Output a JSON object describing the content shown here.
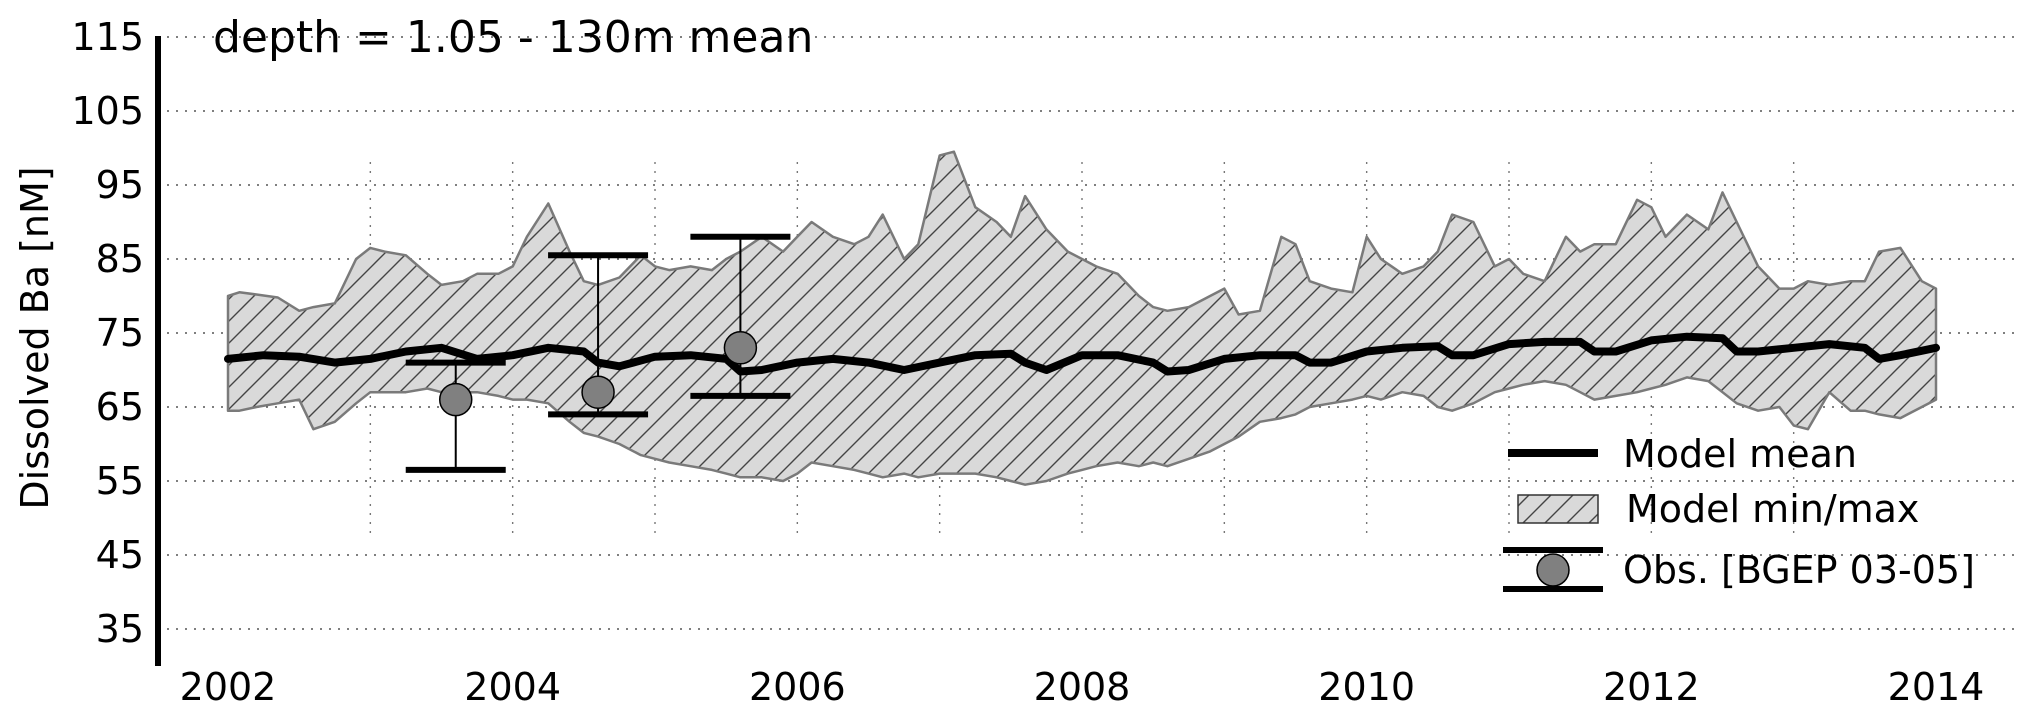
{
  "chart_data": {
    "type": "line",
    "title": "depth = 1.05 - 130m mean",
    "xlabel": "",
    "ylabel": "Dissolved Ba [nM]",
    "xlim": [
      2002,
      2014
    ],
    "ylim": [
      30,
      120
    ],
    "xticks": [
      "2002",
      "2004",
      "2006",
      "2008",
      "2010",
      "2012",
      "2014"
    ],
    "yticks": [
      "35",
      "45",
      "55",
      "65",
      "75",
      "85",
      "95",
      "105",
      "115"
    ],
    "grid": "dotted",
    "legend_placement": "lower-right",
    "series": [
      {
        "name": "Model mean",
        "style": "thick-line",
        "color": "#000000",
        "x": [
          2002.0,
          2002.25,
          2002.5,
          2002.75,
          2003.0,
          2003.25,
          2003.5,
          2003.75,
          2004.0,
          2004.25,
          2004.5,
          2004.6,
          2004.75,
          2005.0,
          2005.25,
          2005.5,
          2005.6,
          2005.75,
          2006.0,
          2006.25,
          2006.5,
          2006.75,
          2007.0,
          2007.25,
          2007.5,
          2007.6,
          2007.75,
          2008.0,
          2008.25,
          2008.5,
          2008.6,
          2008.75,
          2009.0,
          2009.25,
          2009.5,
          2009.6,
          2009.75,
          2010.0,
          2010.25,
          2010.5,
          2010.6,
          2010.75,
          2011.0,
          2011.25,
          2011.5,
          2011.6,
          2011.75,
          2012.0,
          2012.25,
          2012.5,
          2012.6,
          2012.75,
          2013.0,
          2013.25,
          2013.5,
          2013.6,
          2013.75,
          2014.0
        ],
        "values": [
          71.5,
          72.0,
          71.8,
          71.0,
          71.5,
          72.5,
          73.0,
          71.5,
          72.0,
          73.0,
          72.5,
          71.0,
          70.5,
          71.8,
          72.0,
          71.5,
          69.8,
          70.0,
          71.0,
          71.5,
          71.0,
          70.0,
          71.0,
          72.0,
          72.2,
          71.0,
          70.0,
          72.0,
          72.0,
          71.0,
          69.8,
          70.0,
          71.5,
          72.0,
          72.0,
          71.0,
          71.0,
          72.5,
          73.0,
          73.2,
          72.0,
          72.0,
          73.5,
          73.8,
          73.8,
          72.5,
          72.5,
          74.0,
          74.5,
          74.3,
          72.5,
          72.5,
          73.0,
          73.5,
          73.0,
          71.5,
          72.0,
          73.0
        ]
      },
      {
        "name": "Model min/max",
        "style": "hatched-band",
        "color": "#d9d9d9",
        "x": [
          2002.0,
          2002.08,
          2002.2,
          2002.35,
          2002.5,
          2002.6,
          2002.75,
          2002.9,
          2003.0,
          2003.1,
          2003.25,
          2003.4,
          2003.5,
          2003.65,
          2003.75,
          2003.9,
          2004.0,
          2004.1,
          2004.25,
          2004.4,
          2004.5,
          2004.6,
          2004.75,
          2004.9,
          2005.0,
          2005.1,
          2005.25,
          2005.4,
          2005.5,
          2005.6,
          2005.75,
          2005.9,
          2006.0,
          2006.1,
          2006.25,
          2006.4,
          2006.5,
          2006.6,
          2006.75,
          2006.85,
          2007.0,
          2007.1,
          2007.25,
          2007.4,
          2007.5,
          2007.6,
          2007.75,
          2007.9,
          2008.0,
          2008.1,
          2008.25,
          2008.4,
          2008.5,
          2008.6,
          2008.75,
          2008.9,
          2009.0,
          2009.1,
          2009.25,
          2009.4,
          2009.5,
          2009.6,
          2009.75,
          2009.9,
          2010.0,
          2010.1,
          2010.25,
          2010.4,
          2010.5,
          2010.6,
          2010.75,
          2010.9,
          2011.0,
          2011.1,
          2011.25,
          2011.4,
          2011.5,
          2011.6,
          2011.75,
          2011.9,
          2012.0,
          2012.1,
          2012.25,
          2012.4,
          2012.5,
          2012.6,
          2012.75,
          2012.9,
          2013.0,
          2013.1,
          2013.25,
          2013.4,
          2013.5,
          2013.6,
          2013.75,
          2013.9,
          2014.0
        ],
        "max": [
          80.0,
          80.5,
          80.2,
          79.8,
          78.0,
          78.5,
          79.0,
          85.0,
          86.5,
          86.0,
          85.5,
          83.0,
          81.5,
          82.0,
          83.0,
          83.0,
          84.0,
          88.0,
          92.5,
          86.0,
          82.0,
          81.5,
          82.5,
          85.5,
          84.0,
          83.5,
          84.0,
          83.5,
          85.0,
          86.0,
          88.0,
          86.0,
          88.0,
          90.0,
          88.0,
          87.0,
          88.0,
          91.0,
          85.0,
          87.0,
          99.0,
          99.5,
          92.0,
          90.0,
          88.0,
          93.5,
          89.0,
          86.0,
          85.0,
          84.0,
          83.0,
          80.0,
          78.5,
          78.0,
          78.5,
          80.0,
          81.0,
          77.5,
          78.0,
          88.0,
          87.0,
          82.0,
          81.0,
          80.5,
          88.0,
          85.0,
          83.0,
          84.0,
          86.0,
          91.0,
          90.0,
          84.0,
          85.0,
          83.0,
          82.0,
          88.0,
          86.0,
          87.0,
          87.0,
          93.0,
          92.0,
          88.0,
          91.0,
          89.0,
          94.0,
          90.0,
          84.0,
          81.0,
          81.0,
          82.0,
          81.5,
          82.0,
          82.0,
          86.0,
          86.5,
          82.0,
          81.0
        ],
        "min": [
          64.5,
          64.5,
          65.0,
          65.5,
          66.0,
          62.0,
          63.0,
          65.5,
          67.0,
          67.0,
          67.0,
          67.5,
          67.0,
          67.0,
          67.0,
          66.5,
          66.0,
          66.0,
          65.5,
          63.0,
          61.5,
          61.0,
          60.0,
          58.5,
          58.0,
          57.5,
          57.0,
          56.5,
          56.0,
          55.5,
          55.5,
          55.0,
          56.0,
          57.5,
          57.0,
          56.5,
          56.0,
          55.5,
          56.0,
          55.5,
          56.0,
          56.0,
          56.0,
          55.5,
          55.0,
          54.5,
          55.0,
          56.0,
          56.5,
          57.0,
          57.5,
          57.0,
          57.5,
          57.0,
          58.0,
          59.0,
          60.0,
          61.0,
          63.0,
          63.5,
          64.0,
          65.0,
          65.5,
          66.0,
          66.5,
          66.0,
          67.0,
          66.5,
          65.0,
          64.5,
          65.5,
          67.0,
          67.5,
          68.0,
          68.5,
          68.0,
          67.0,
          66.0,
          66.5,
          67.0,
          67.5,
          68.0,
          69.0,
          68.5,
          67.0,
          65.5,
          64.5,
          65.0,
          62.5,
          62.0,
          67.0,
          64.5,
          64.5,
          64.0,
          63.5,
          65.0,
          66.0
        ]
      },
      {
        "name": "Obs. [BGEP 03-05]",
        "style": "points-with-errorbars",
        "color": "#808080",
        "x": [
          2003.6,
          2004.6,
          2005.6
        ],
        "values": [
          66.0,
          67.0,
          73.0
        ],
        "err_low": [
          56.5,
          64.0,
          66.5
        ],
        "err_high": [
          71.0,
          85.5,
          88.0
        ]
      }
    ]
  }
}
